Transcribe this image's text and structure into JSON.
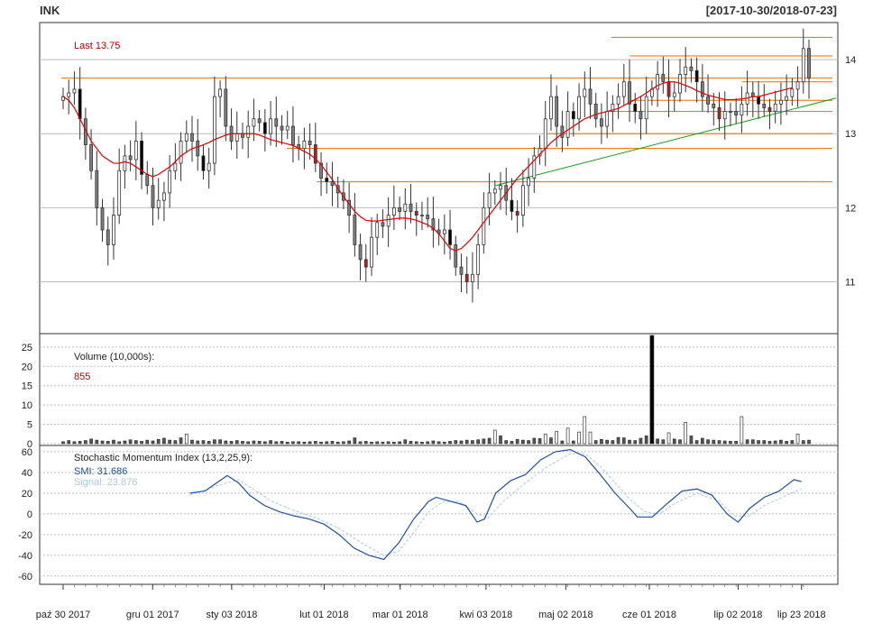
{
  "header": {
    "symbol": "INK",
    "date_range": "[2017-10-30/2018-07-23]"
  },
  "colors": {
    "up_candle": "#ffffff",
    "down_candle": "#000000",
    "gray_candle": "#808080",
    "red_candle": "#b22222",
    "sma": "#e00000",
    "level_lines": "#e07000",
    "trend_line": "#1a9a1a",
    "smi": "#1f4fa0",
    "signal": "#a9c6ee",
    "grid": "#bbbbbb"
  },
  "chart_data": [
    {
      "type": "candlestick",
      "panel": "price",
      "last_label": "Last 13.75",
      "ylim": [
        10.3,
        14.5
      ],
      "yticks": [
        11,
        12,
        13,
        14
      ],
      "xlabels": [
        "paź 30 2017",
        "gru 01 2017",
        "sty 03 2018",
        "lut 01 2018",
        "mar 01 2018",
        "kwi 03 2018",
        "maj 02 2018",
        "cze 01 2018",
        "lip 02 2018",
        "lip 23 2018"
      ],
      "close": [
        13.5,
        13.55,
        13.6,
        13.2,
        12.85,
        12.5,
        12.0,
        11.7,
        11.5,
        11.9,
        12.5,
        12.7,
        12.65,
        12.9,
        12.45,
        12.3,
        12.0,
        12.1,
        12.2,
        12.5,
        12.6,
        12.9,
        13.0,
        12.9,
        12.7,
        12.5,
        12.6,
        13.5,
        13.6,
        13.1,
        12.9,
        13.0,
        12.95,
        13.1,
        13.2,
        13.15,
        13.0,
        13.2,
        13.1,
        13.05,
        13.1,
        12.85,
        12.8,
        12.9,
        12.85,
        12.6,
        12.4,
        12.35,
        12.3,
        12.2,
        12.1,
        11.9,
        11.5,
        11.3,
        11.2,
        11.6,
        11.8,
        11.75,
        11.9,
        12.0,
        11.95,
        12.05,
        11.95,
        11.9,
        11.9,
        11.85,
        11.7,
        11.65,
        11.7,
        11.5,
        11.2,
        11.1,
        11.0,
        11.1,
        11.5,
        12.0,
        12.2,
        12.25,
        12.3,
        12.1,
        11.95,
        11.9,
        12.3,
        12.4,
        12.7,
        12.8,
        13.2,
        13.5,
        13.1,
        12.95,
        13.3,
        13.2,
        13.5,
        13.6,
        13.4,
        13.2,
        13.1,
        13.3,
        13.4,
        13.5,
        13.7,
        13.4,
        13.3,
        13.2,
        13.5,
        13.6,
        13.8,
        13.7,
        13.5,
        13.55,
        13.8,
        13.9,
        13.85,
        13.7,
        13.5,
        13.4,
        13.35,
        13.2,
        13.3,
        13.3,
        13.25,
        13.4,
        13.55,
        13.5,
        13.4,
        13.35,
        13.3,
        13.4,
        13.45,
        13.5,
        13.6,
        13.7,
        14.15,
        13.75
      ],
      "series": [
        {
          "name": "SMA",
          "values": [
            13.5,
            13.45,
            13.35,
            13.2,
            13.05,
            12.9,
            12.8,
            12.7,
            12.65,
            12.6,
            12.6,
            12.62,
            12.6,
            12.55,
            12.5,
            12.45,
            12.42,
            12.45,
            12.5,
            12.55,
            12.62,
            12.7,
            12.75,
            12.8,
            12.82,
            12.85,
            12.88,
            12.92,
            12.95,
            12.98,
            13.0,
            13.0,
            13.0,
            13.0,
            13.0,
            12.98,
            12.95,
            12.92,
            12.9,
            12.88,
            12.86,
            12.84,
            12.8,
            12.76,
            12.72,
            12.66,
            12.58,
            12.48,
            12.38,
            12.26,
            12.15,
            12.05,
            11.95,
            11.88,
            11.83,
            11.82,
            11.82,
            11.83,
            11.84,
            11.85,
            11.86,
            11.86,
            11.85,
            11.83,
            11.8,
            11.77,
            11.72,
            11.65,
            11.55,
            11.45,
            11.42,
            11.45,
            11.52,
            11.6,
            11.7,
            11.8,
            11.9,
            12.0,
            12.1,
            12.2,
            12.3,
            12.4,
            12.48,
            12.56,
            12.64,
            12.72,
            12.8,
            12.88,
            12.94,
            13.0,
            13.05,
            13.1,
            13.15,
            13.2,
            13.23,
            13.26,
            13.28,
            13.3,
            13.32,
            13.34,
            13.38,
            13.42,
            13.46,
            13.5,
            13.55,
            13.6,
            13.65,
            13.68,
            13.7,
            13.7,
            13.68,
            13.65,
            13.62,
            13.58,
            13.55,
            13.52,
            13.5,
            13.48,
            13.46,
            13.46,
            13.46,
            13.47,
            13.48,
            13.5,
            13.5,
            13.52,
            13.54,
            13.56,
            13.58,
            13.6,
            13.62
          ]
        }
      ],
      "levels": [
        13.75,
        14.3,
        14.05,
        13.7,
        13.45,
        13.3,
        13.0,
        12.8,
        12.35
      ],
      "trend_line": [
        {
          "x": 0.58,
          "y": 12.3
        },
        {
          "x": 1.0,
          "y": 13.48
        }
      ]
    },
    {
      "type": "bar",
      "panel": "volume",
      "label": "Volume (10,000s):",
      "value_label": "855",
      "ylim": [
        0,
        28
      ],
      "yticks": [
        0,
        5,
        10,
        15,
        20,
        25
      ],
      "values": [
        0.5,
        0.8,
        0.5,
        0.6,
        0.8,
        1.2,
        0.9,
        0.7,
        0.6,
        0.9,
        0.5,
        0.7,
        1.0,
        0.8,
        0.6,
        0.9,
        0.7,
        1.1,
        1.4,
        0.9,
        0.8,
        1.5,
        2.5,
        0.9,
        0.7,
        0.8,
        0.6,
        1.0,
        1.0,
        0.7,
        0.6,
        0.8,
        0.6,
        0.5,
        0.7,
        0.6,
        0.5,
        0.8,
        0.5,
        0.6,
        0.4,
        0.5,
        0.5,
        0.4,
        0.5,
        0.6,
        0.4,
        0.5,
        0.6,
        0.4,
        0.5,
        0.7,
        1.5,
        0.5,
        0.6,
        0.4,
        0.5,
        0.4,
        0.5,
        0.4,
        0.5,
        1.0,
        0.6,
        0.5,
        0.4,
        0.5,
        0.7,
        0.5,
        0.4,
        0.6,
        0.8,
        0.7,
        0.9,
        0.8,
        1.0,
        1.2,
        1.4,
        3.5,
        2.0,
        0.8,
        0.6,
        1.1,
        0.9,
        0.8,
        1.4,
        1.3,
        2.5,
        1.5,
        3.2,
        0.7,
        4.0,
        0.7,
        3.0,
        7.0,
        3.0,
        0.8,
        1.1,
        0.9,
        0.8,
        1.6,
        1.5,
        0.9,
        0.8,
        1.4,
        2.0,
        28.5,
        1.2,
        1.0,
        2.8,
        1.2,
        1.0,
        5.5,
        2.0,
        0.8,
        1.4,
        1.0,
        0.9,
        0.8,
        0.7,
        0.6,
        0.6,
        7.0,
        1.0,
        1.0,
        0.8,
        0.8,
        0.6,
        0.7,
        0.9,
        0.6,
        0.8,
        2.5,
        0.8,
        0.9
      ]
    },
    {
      "type": "line",
      "panel": "indicator",
      "label": "Stochastic Momentum Index (13,2,25,9):",
      "smi_label": "SMI: 31.686",
      "signal_label": "Signal: 23.876",
      "ylim": [
        -68,
        66
      ],
      "yticks": [
        -60,
        -40,
        -20,
        0,
        20,
        40,
        60
      ],
      "series": [
        {
          "name": "SMI",
          "points": [
            [
              0.17,
              20
            ],
            [
              0.19,
              22
            ],
            [
              0.21,
              32
            ],
            [
              0.22,
              37
            ],
            [
              0.235,
              30
            ],
            [
              0.25,
              18
            ],
            [
              0.27,
              8
            ],
            [
              0.29,
              2
            ],
            [
              0.31,
              -2
            ],
            [
              0.33,
              -5
            ],
            [
              0.35,
              -10
            ],
            [
              0.37,
              -20
            ],
            [
              0.39,
              -33
            ],
            [
              0.41,
              -40
            ],
            [
              0.43,
              -44
            ],
            [
              0.45,
              -28
            ],
            [
              0.47,
              -5
            ],
            [
              0.49,
              12
            ],
            [
              0.5,
              16
            ],
            [
              0.52,
              12
            ],
            [
              0.54,
              8
            ],
            [
              0.555,
              -8
            ],
            [
              0.565,
              -5
            ],
            [
              0.58,
              20
            ],
            [
              0.6,
              32
            ],
            [
              0.62,
              38
            ],
            [
              0.64,
              52
            ],
            [
              0.66,
              60
            ],
            [
              0.68,
              62
            ],
            [
              0.7,
              55
            ],
            [
              0.72,
              38
            ],
            [
              0.74,
              20
            ],
            [
              0.76,
              5
            ],
            [
              0.77,
              -3
            ],
            [
              0.79,
              -3
            ],
            [
              0.81,
              10
            ],
            [
              0.83,
              22
            ],
            [
              0.85,
              24
            ],
            [
              0.87,
              18
            ],
            [
              0.89,
              0
            ],
            [
              0.905,
              -8
            ],
            [
              0.92,
              5
            ],
            [
              0.94,
              16
            ],
            [
              0.96,
              22
            ],
            [
              0.98,
              33
            ],
            [
              0.99,
              31
            ]
          ]
        },
        {
          "name": "Signal",
          "points": [
            [
              0.17,
              18
            ],
            [
              0.21,
              28
            ],
            [
              0.235,
              33
            ],
            [
              0.25,
              26
            ],
            [
              0.28,
              12
            ],
            [
              0.31,
              3
            ],
            [
              0.34,
              -4
            ],
            [
              0.37,
              -14
            ],
            [
              0.4,
              -28
            ],
            [
              0.43,
              -40
            ],
            [
              0.45,
              -36
            ],
            [
              0.47,
              -18
            ],
            [
              0.49,
              2
            ],
            [
              0.51,
              12
            ],
            [
              0.53,
              12
            ],
            [
              0.555,
              0
            ],
            [
              0.57,
              -4
            ],
            [
              0.59,
              12
            ],
            [
              0.62,
              30
            ],
            [
              0.65,
              46
            ],
            [
              0.68,
              58
            ],
            [
              0.7,
              58
            ],
            [
              0.72,
              46
            ],
            [
              0.74,
              30
            ],
            [
              0.76,
              14
            ],
            [
              0.78,
              2
            ],
            [
              0.8,
              0
            ],
            [
              0.82,
              10
            ],
            [
              0.85,
              20
            ],
            [
              0.88,
              12
            ],
            [
              0.9,
              -2
            ],
            [
              0.92,
              -2
            ],
            [
              0.94,
              8
            ],
            [
              0.97,
              18
            ],
            [
              0.99,
              24
            ]
          ]
        }
      ]
    }
  ]
}
